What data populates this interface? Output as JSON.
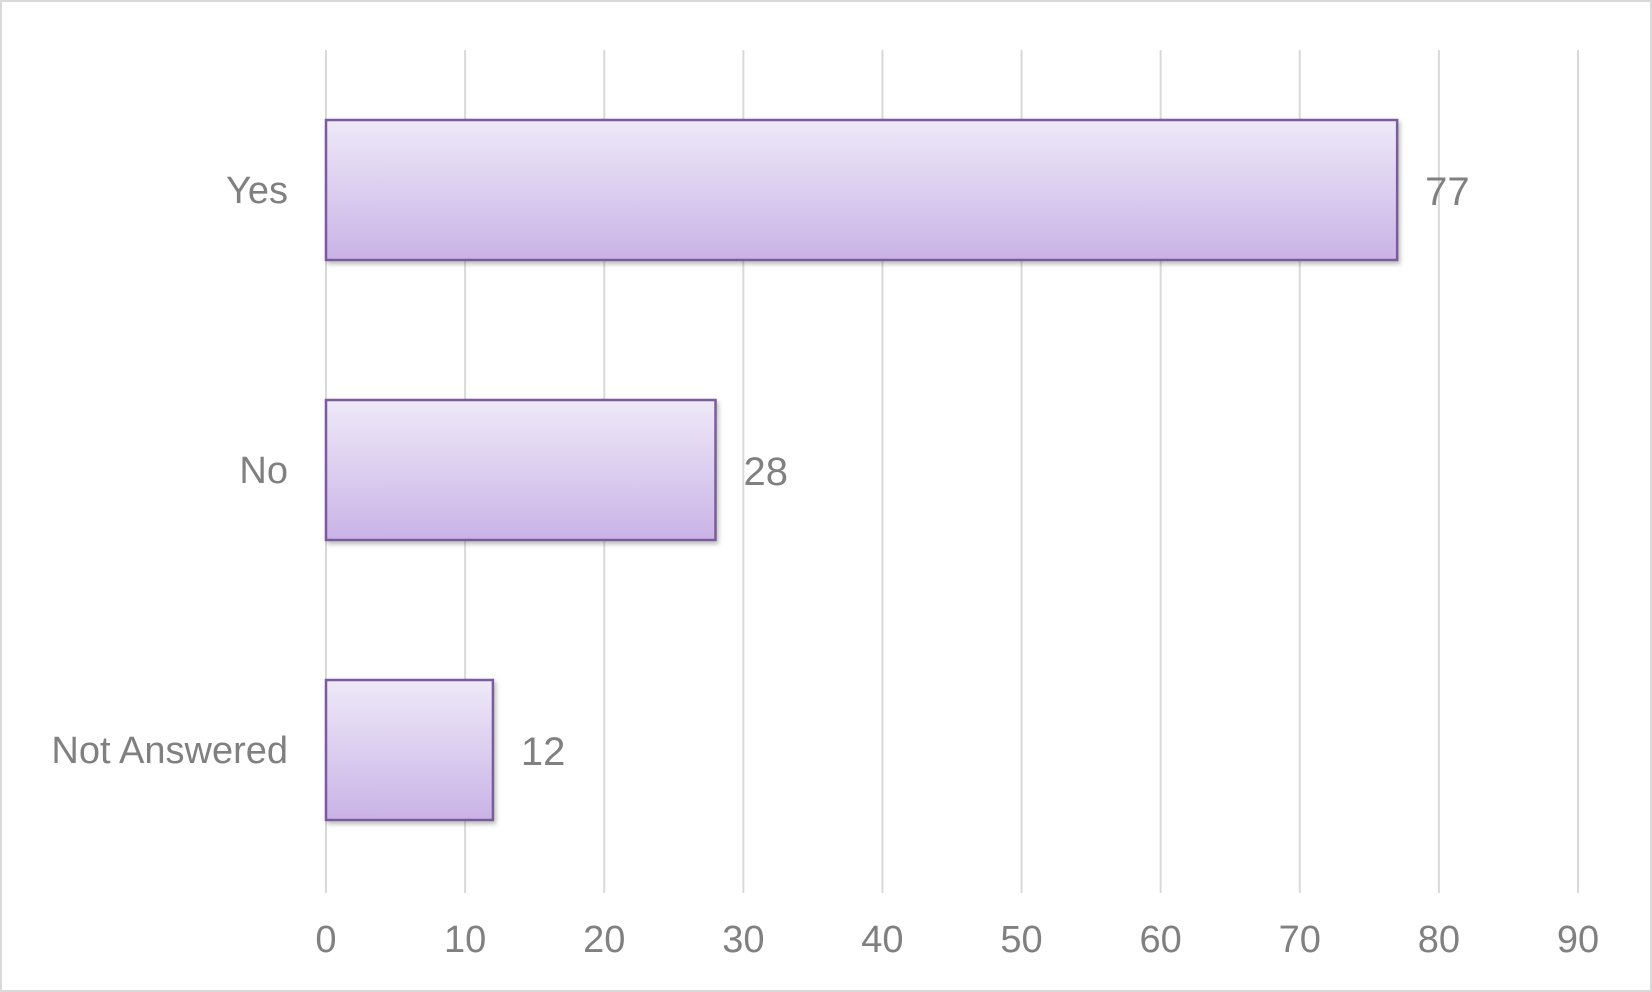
{
  "chart_data": {
    "type": "bar",
    "orientation": "horizontal",
    "categories": [
      "Yes",
      "No",
      "Not Answered"
    ],
    "values": [
      77,
      28,
      12
    ],
    "title": "",
    "xlabel": "",
    "ylabel": "",
    "xlim": [
      0,
      90
    ],
    "xticks": [
      "0",
      "10",
      "20",
      "30",
      "40",
      "50",
      "60",
      "70",
      "80",
      "90"
    ],
    "grid": "vertical",
    "legend": "none",
    "data_labels": true,
    "colors": {
      "bar_fill_top": "#eee9f8",
      "bar_fill_bottom": "#c9b3e6",
      "bar_border": "#7a5c9e",
      "gridline": "#d9d9d9",
      "text": "#808080"
    }
  }
}
